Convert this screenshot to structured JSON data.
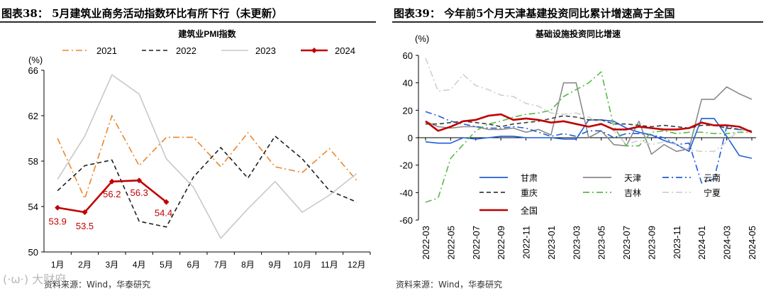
{
  "left": {
    "heading": "图表38：  5月建筑业商务活动指数环比有所下行（未更新）",
    "source": "资料来源：Wind，华泰研究"
  },
  "right": {
    "heading": "图表39：  今年前5个月天津基建投资同比累计增速高于全国",
    "source": "资料来源：Wind，华泰研究"
  },
  "watermark": "(·ω·) 大财府",
  "chart_data": [
    {
      "type": "line",
      "title": "建筑业PMI指数",
      "ylabel": "(%)",
      "xlabel": "",
      "categories": [
        "1月",
        "2月",
        "3月",
        "4月",
        "5月",
        "6月",
        "7月",
        "8月",
        "9月",
        "10月",
        "11月",
        "12月"
      ],
      "ylim": [
        50,
        66
      ],
      "yticks": [
        50,
        54,
        58,
        62,
        66
      ],
      "legend_position": "top",
      "series": [
        {
          "name": "2021",
          "color": "#e8872e",
          "style": "dashdot",
          "values": [
            60.0,
            54.7,
            62.0,
            57.6,
            60.1,
            60.1,
            57.5,
            60.5,
            57.5,
            57.0,
            59.1,
            56.3
          ]
        },
        {
          "name": "2022",
          "color": "#1f1f1f",
          "style": "dashed",
          "values": [
            55.4,
            57.6,
            58.1,
            52.7,
            52.2,
            56.6,
            59.2,
            56.5,
            60.2,
            58.2,
            55.4,
            54.4
          ]
        },
        {
          "name": "2023",
          "color": "#c8c8c8",
          "style": "solid",
          "values": [
            56.4,
            60.2,
            65.6,
            63.9,
            58.2,
            55.7,
            51.2,
            53.8,
            56.2,
            53.5,
            55.0,
            56.9
          ]
        },
        {
          "name": "2024",
          "color": "#c00000",
          "style": "solid-marker",
          "values": [
            53.9,
            53.5,
            56.2,
            56.3,
            54.4,
            null,
            null,
            null,
            null,
            null,
            null,
            null
          ]
        }
      ],
      "data_labels": [
        "53.9",
        "53.5",
        "56.2",
        "56.3",
        "54.4"
      ]
    },
    {
      "type": "line",
      "title": "基础设施投资同比增速",
      "ylabel": "(%)",
      "xlabel": "",
      "categories": [
        "2022-03",
        "2022-04",
        "2022-05",
        "2022-06",
        "2022-07",
        "2022-08",
        "2022-09",
        "2022-10",
        "2022-11",
        "2022-12",
        "2023-01",
        "2023-02",
        "2023-03",
        "2023-04",
        "2023-05",
        "2023-06",
        "2023-07",
        "2023-08",
        "2023-09",
        "2023-10",
        "2023-11",
        "2023-12",
        "2024-01",
        "2024-02",
        "2024-03",
        "2024-04",
        "2024-05"
      ],
      "tick_labels": [
        "2022-03",
        "2022-05",
        "2022-07",
        "2022-09",
        "2022-11",
        "2023-01",
        "2023-03",
        "2023-05",
        "2023-07",
        "2023-09",
        "2023-11",
        "2024-01",
        "2024-03",
        "2024-05"
      ],
      "ylim": [
        -60,
        60
      ],
      "yticks": [
        -60,
        -40,
        -20,
        0,
        20,
        40,
        60
      ],
      "legend_position": "bottom-left",
      "series": [
        {
          "name": "甘肃",
          "color": "#1f5fd6",
          "style": "solid",
          "values": [
            -3,
            -4,
            -4,
            0,
            -1,
            0,
            1,
            1,
            0,
            0,
            0,
            -1,
            -1,
            13,
            13,
            12,
            7,
            4,
            2,
            -2,
            -5,
            -10,
            14,
            14,
            1,
            -13,
            -15
          ]
        },
        {
          "name": "天津",
          "color": "#8a8a8a",
          "style": "solid",
          "values": [
            12,
            8,
            7,
            8,
            8,
            6,
            6,
            7,
            4,
            6,
            2,
            40,
            40,
            0,
            5,
            -5,
            -6,
            12,
            -12,
            -5,
            -10,
            -8,
            28,
            28,
            37,
            32,
            28
          ]
        },
        {
          "name": "云南",
          "color": "#1f5fd6",
          "style": "dashdot",
          "values": [
            19,
            16,
            12,
            10,
            8,
            7,
            7,
            8,
            7,
            4,
            1,
            3,
            1,
            5,
            5,
            0,
            3,
            3,
            2,
            0,
            -5,
            -4,
            -33,
            -30,
            8,
            6,
            5
          ]
        },
        {
          "name": "重庆",
          "color": "#3c3c3c",
          "style": "dashed",
          "values": [
            10,
            10,
            11,
            12,
            11,
            10,
            8,
            10,
            11,
            12,
            14,
            16,
            15,
            13,
            13,
            10,
            10,
            9,
            8,
            9,
            8,
            7,
            9,
            9,
            7,
            6,
            5
          ]
        },
        {
          "name": "吉林",
          "color": "#5ab84a",
          "style": "dashdot",
          "values": [
            -47,
            -44,
            -15,
            -5,
            5,
            10,
            12,
            15,
            17,
            18,
            20,
            30,
            35,
            40,
            48,
            8,
            -6,
            -6,
            4,
            5,
            3,
            4,
            4,
            3,
            3,
            4,
            4
          ]
        },
        {
          "name": "宁夏",
          "color": "#cfcfcf",
          "style": "dashdot",
          "values": [
            58,
            34,
            35,
            46,
            38,
            35,
            31,
            30,
            25,
            23,
            18,
            17,
            18,
            15,
            10,
            5,
            -5,
            -2,
            -5,
            -3,
            -5,
            -9,
            -10,
            -10,
            -3,
            6,
            5
          ]
        },
        {
          "name": "全国",
          "color": "#c00000",
          "style": "solid",
          "values": [
            12,
            5,
            8,
            12,
            13,
            16,
            17,
            13,
            14,
            13,
            11,
            12,
            10,
            8,
            10,
            6,
            6,
            8,
            7,
            6,
            6,
            7,
            11,
            9,
            9,
            8,
            4
          ]
        }
      ]
    }
  ]
}
